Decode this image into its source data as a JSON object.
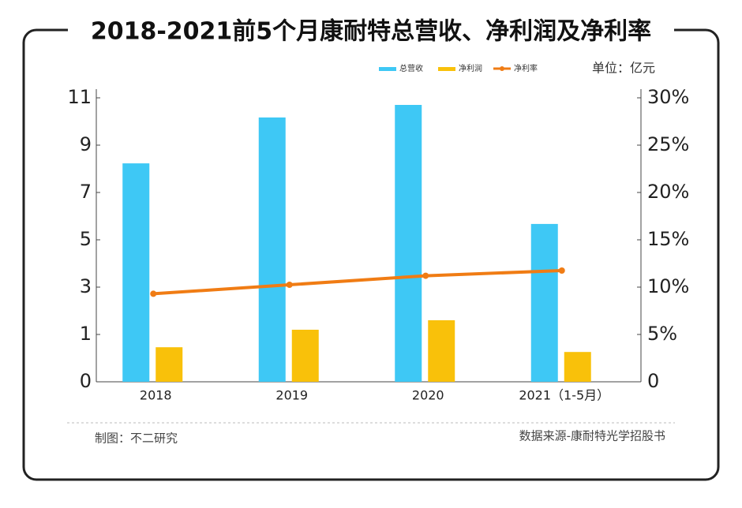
{
  "chart_data": {
    "type": "bar",
    "title": "2018-2021前5个月康耐特总营收、净利润及净利率",
    "unit": "单位：亿元",
    "credit": "制图：不二研究",
    "source": "数据来源-康耐特光学招股书",
    "categories": [
      "2018",
      "2019",
      "2020",
      "2021（1-5月）"
    ],
    "series": [
      {
        "name": "总营收",
        "type": "bar",
        "color": "#3ec8f5",
        "values": [
          8.23,
          10.17,
          10.7,
          5.67
        ]
      },
      {
        "name": "净利润",
        "type": "bar",
        "color": "#f9c10a",
        "values": [
          0.73,
          1.2,
          1.6,
          0.63
        ]
      },
      {
        "name": "净利率",
        "type": "line",
        "color": "#f07c14",
        "axis": "y2",
        "values": [
          9.3,
          10.25,
          11.2,
          11.75
        ]
      }
    ],
    "ylim": [
      0,
      11
    ],
    "yticks": [
      0,
      1,
      3,
      5,
      7,
      9,
      11
    ],
    "y2lim": [
      0,
      30
    ],
    "y2ticks": [
      0,
      {
        "value": 5,
        "label": "5%"
      },
      {
        "value": 10,
        "label": "10%"
      },
      {
        "value": 15,
        "label": "15%"
      },
      {
        "value": 20,
        "label": "20%"
      },
      {
        "value": 25,
        "label": "25%"
      },
      {
        "value": 30,
        "label": "30%"
      }
    ]
  }
}
